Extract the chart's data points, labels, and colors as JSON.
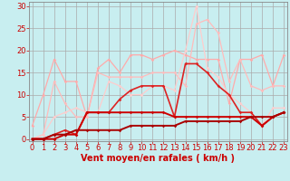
{
  "xlabel": "Vent moyen/en rafales ( km/h )",
  "background_color": "#c8eef0",
  "grid_color": "#aaaaaa",
  "x_ticks": [
    0,
    1,
    2,
    3,
    4,
    5,
    6,
    7,
    8,
    9,
    10,
    11,
    12,
    13,
    14,
    15,
    16,
    17,
    18,
    19,
    20,
    21,
    22,
    23
  ],
  "y_ticks": [
    0,
    5,
    10,
    15,
    20,
    25,
    30
  ],
  "ylim": [
    -0.5,
    31
  ],
  "xlim": [
    -0.3,
    23.3
  ],
  "series": [
    {
      "x": [
        0,
        1,
        2,
        3,
        4,
        5,
        6,
        7,
        8,
        9,
        10,
        11,
        12,
        13,
        14,
        15,
        16,
        17,
        18,
        19,
        20,
        21,
        22,
        23
      ],
      "y": [
        3,
        10,
        18,
        13,
        13,
        5,
        16,
        18,
        15,
        19,
        19,
        18,
        19,
        20,
        19,
        18,
        18,
        18,
        8,
        18,
        18,
        19,
        12,
        19
      ],
      "color": "#ffaaaa",
      "lw": 0.9,
      "marker": "D",
      "ms": 1.8
    },
    {
      "x": [
        0,
        1,
        2,
        3,
        4,
        5,
        6,
        7,
        8,
        9,
        10,
        11,
        12,
        13,
        14,
        15,
        16,
        17,
        18,
        19,
        20,
        21,
        22,
        23
      ],
      "y": [
        0,
        1,
        13,
        8,
        5,
        5,
        15,
        14,
        14,
        14,
        14,
        15,
        15,
        15,
        12,
        26,
        27,
        24,
        13,
        18,
        12,
        11,
        12,
        12
      ],
      "color": "#ffbbbb",
      "lw": 0.9,
      "marker": "D",
      "ms": 1.8
    },
    {
      "x": [
        0,
        1,
        2,
        3,
        4,
        5,
        6,
        7,
        8,
        9,
        10,
        11,
        12,
        13,
        14,
        15,
        16,
        17,
        18,
        19,
        20,
        21,
        22,
        23
      ],
      "y": [
        0,
        1,
        5,
        6,
        7,
        6,
        6,
        13,
        12,
        10,
        10,
        12,
        12,
        11,
        20,
        30,
        16,
        14,
        10,
        8,
        6,
        3,
        7,
        7
      ],
      "color": "#ffcccc",
      "lw": 0.9,
      "marker": "D",
      "ms": 1.8
    },
    {
      "x": [
        0,
        1,
        2,
        3,
        4,
        5,
        6,
        7,
        8,
        9,
        10,
        11,
        12,
        13,
        14,
        15,
        16,
        17,
        18,
        19,
        20,
        21,
        22,
        23
      ],
      "y": [
        0,
        0,
        1,
        2,
        1,
        6,
        6,
        6,
        9,
        11,
        12,
        12,
        12,
        5,
        17,
        17,
        15,
        12,
        10,
        6,
        6,
        3,
        5,
        6
      ],
      "color": "#dd2222",
      "lw": 1.2,
      "marker": "D",
      "ms": 1.8
    },
    {
      "x": [
        0,
        1,
        2,
        3,
        4,
        5,
        6,
        7,
        8,
        9,
        10,
        11,
        12,
        13,
        14,
        15,
        16,
        17,
        18,
        19,
        20,
        21,
        22,
        23
      ],
      "y": [
        0,
        0,
        0,
        1,
        1,
        6,
        6,
        6,
        6,
        6,
        6,
        6,
        6,
        5,
        5,
        5,
        5,
        5,
        5,
        5,
        5,
        3,
        5,
        6
      ],
      "color": "#cc0000",
      "lw": 1.4,
      "marker": "D",
      "ms": 1.8
    },
    {
      "x": [
        0,
        1,
        2,
        3,
        4,
        5,
        6,
        7,
        8,
        9,
        10,
        11,
        12,
        13,
        14,
        15,
        16,
        17,
        18,
        19,
        20,
        21,
        22,
        23
      ],
      "y": [
        0,
        0,
        1,
        1,
        2,
        2,
        2,
        2,
        2,
        3,
        3,
        3,
        3,
        3,
        4,
        4,
        4,
        4,
        4,
        4,
        5,
        5,
        5,
        6
      ],
      "color": "#aa0000",
      "lw": 1.4,
      "marker": "D",
      "ms": 1.8
    }
  ],
  "xlabel_color": "#cc0000",
  "xlabel_fontsize": 7,
  "tick_fontsize": 6,
  "tick_color": "#cc0000",
  "axis_color": "#888888"
}
